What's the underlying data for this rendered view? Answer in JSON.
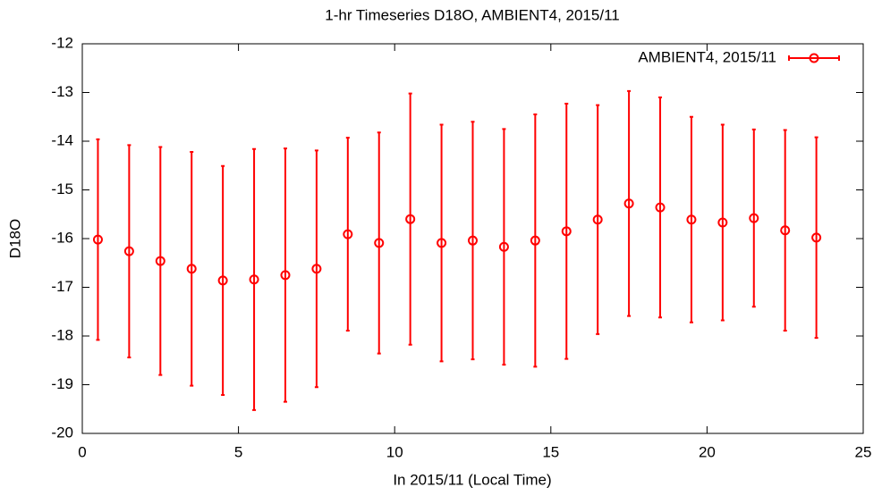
{
  "chart_data": {
    "type": "errorbar",
    "title": "1-hr Timeseries D18O, AMBIENT4, 2015/11",
    "x_label": "In 2015/11 (Local Time)",
    "y_label": "D18O",
    "x": [
      0.5,
      1.5,
      2.5,
      3.5,
      4.5,
      5.5,
      6.5,
      7.5,
      8.5,
      9.5,
      10.5,
      11.5,
      12.5,
      13.5,
      14.5,
      15.5,
      16.5,
      17.5,
      18.5,
      19.5,
      20.5,
      21.5,
      22.5,
      23.5
    ],
    "series": [
      {
        "name": "AMBIENT4, 2015/11",
        "color": "#ff0000",
        "values": [
          -16.02,
          -16.26,
          -16.46,
          -16.62,
          -16.86,
          -16.84,
          -16.75,
          -16.62,
          -15.91,
          -16.09,
          -15.6,
          -16.09,
          -16.04,
          -16.17,
          -16.04,
          -15.85,
          -15.61,
          -15.28,
          -15.36,
          -15.61,
          -15.67,
          -15.58,
          -15.83,
          -15.98
        ],
        "errors": [
          2.06,
          2.18,
          2.34,
          2.4,
          2.35,
          2.68,
          2.6,
          2.43,
          1.98,
          2.27,
          2.58,
          2.43,
          2.44,
          2.42,
          2.59,
          2.62,
          2.35,
          2.31,
          2.26,
          2.11,
          2.01,
          1.82,
          2.06,
          2.06
        ]
      }
    ],
    "xlim": [
      0,
      25
    ],
    "xticks": [
      0,
      5,
      10,
      15,
      20,
      25
    ],
    "ylim": [
      -20,
      -12
    ],
    "yticks": [
      -20,
      -19,
      -18,
      -17,
      -16,
      -15,
      -14,
      -13,
      -12
    ],
    "legend": "top-right",
    "grid": false
  }
}
